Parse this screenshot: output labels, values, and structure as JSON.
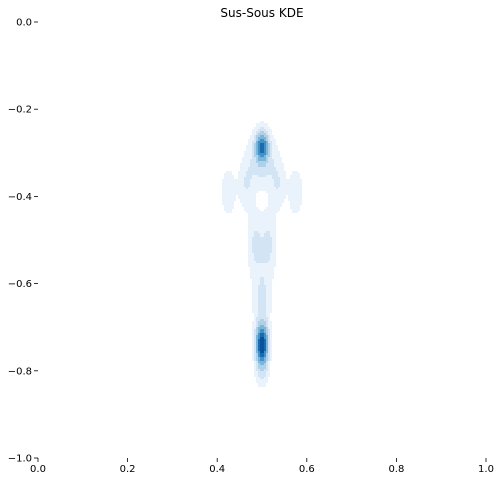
{
  "chart_data": {
    "type": "kde",
    "title": "Sus-Sous KDE",
    "xlabel": "",
    "ylabel": "",
    "xlim": [
      0.0,
      1.0
    ],
    "ylim": [
      -1.0,
      0.0
    ],
    "x_ticks": [
      0.0,
      0.2,
      0.4,
      0.6,
      0.8,
      1.0
    ],
    "x_tick_labels": [
      "0.0",
      "0.2",
      "0.4",
      "0.6",
      "0.8",
      "1.0"
    ],
    "y_ticks": [
      0.0,
      -0.2,
      -0.4,
      -0.6,
      -0.8,
      -1.0
    ],
    "y_tick_labels": [
      "0.0",
      "−0.2",
      "−0.4",
      "−0.6",
      "−0.8",
      "−1.0"
    ],
    "grid": false,
    "colormap": "Blues",
    "fill_colors": [
      "#eaf2fb",
      "#d3e4f5",
      "#afd0e7",
      "#7ab6d9",
      "#4292c6",
      "#1c6ab0",
      "#08519c"
    ],
    "density_peaks": [
      {
        "x": 0.5,
        "y": -0.74,
        "sx": 0.009,
        "sy": 0.03,
        "w": 1.0
      },
      {
        "x": 0.5,
        "y": -0.285,
        "sx": 0.009,
        "sy": 0.022,
        "w": 0.62
      },
      {
        "x": 0.5,
        "y": -0.31,
        "sx": 0.018,
        "sy": 0.04,
        "w": 0.25
      },
      {
        "x": 0.5,
        "y": -0.64,
        "sx": 0.013,
        "sy": 0.05,
        "w": 0.17
      },
      {
        "x": 0.485,
        "y": -0.51,
        "sx": 0.012,
        "sy": 0.05,
        "w": 0.16
      },
      {
        "x": 0.515,
        "y": -0.51,
        "sx": 0.012,
        "sy": 0.05,
        "w": 0.16
      },
      {
        "x": 0.465,
        "y": -0.37,
        "sx": 0.012,
        "sy": 0.04,
        "w": 0.14
      },
      {
        "x": 0.535,
        "y": -0.37,
        "sx": 0.012,
        "sy": 0.04,
        "w": 0.14
      },
      {
        "x": 0.425,
        "y": -0.39,
        "sx": 0.011,
        "sy": 0.038,
        "w": 0.12
      },
      {
        "x": 0.575,
        "y": -0.39,
        "sx": 0.011,
        "sy": 0.038,
        "w": 0.12
      },
      {
        "x": 0.5,
        "y": -0.8,
        "sx": 0.01,
        "sy": 0.025,
        "w": 0.15
      }
    ]
  }
}
